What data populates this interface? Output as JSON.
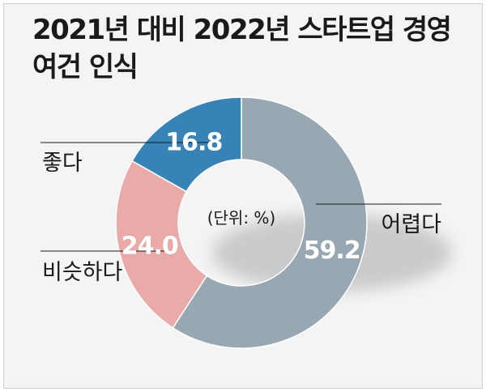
{
  "title": "2021년 대비 2022년 스타트업 경영여건 인식",
  "chart_data": {
    "type": "pie",
    "variant": "donut",
    "unit_note": "(단위: %)",
    "slices": [
      {
        "label": "어렵다",
        "value": 59.2,
        "value_label": "59.2",
        "color": "#97a8b3"
      },
      {
        "label": "비슷하다",
        "value": 24.0,
        "value_label": "24.0",
        "color": "#e9aaa8"
      },
      {
        "label": "좋다",
        "value": 16.8,
        "value_label": "16.8",
        "color": "#3683b8"
      }
    ]
  }
}
